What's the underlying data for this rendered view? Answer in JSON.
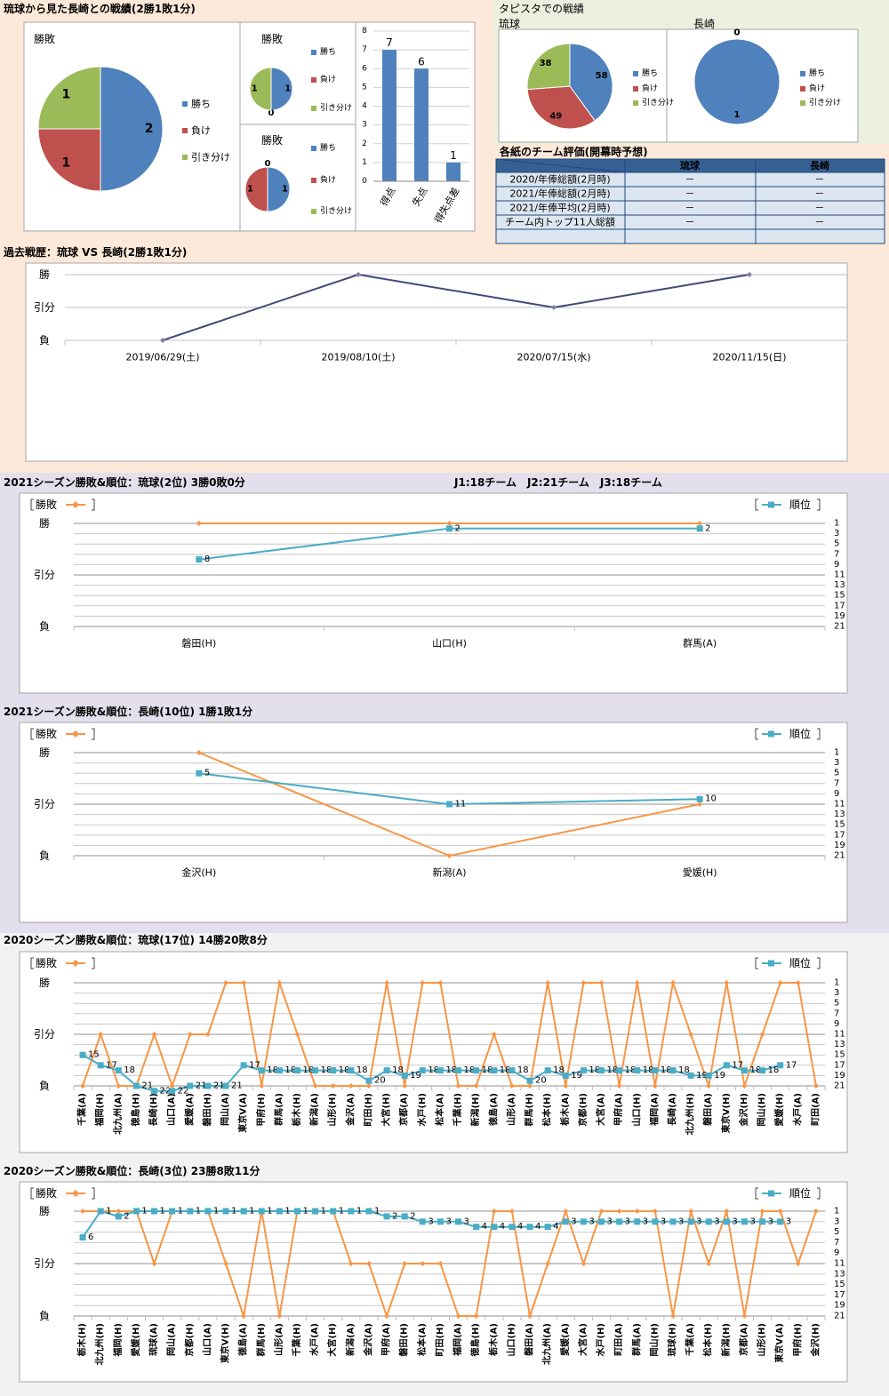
{
  "headings": {
    "record": "琉球から見た長崎との戦績(2勝1敗1分)",
    "stadium": "タピスタでの戦績"
  },
  "chart_data": [
    {
      "type": "pie",
      "title": "勝敗",
      "categories": [
        "勝ち",
        "負け",
        "引き分け"
      ],
      "values": [
        2,
        1,
        1
      ],
      "colors": [
        "#4f81bd",
        "#c0504d",
        "#9bbb59"
      ],
      "legend": "right"
    },
    {
      "type": "pie",
      "title": "勝敗",
      "categories": [
        "勝ち",
        "負け",
        "引き分け"
      ],
      "values": [
        1,
        0,
        1
      ],
      "colors": [
        "#4f81bd",
        "#c0504d",
        "#9bbb59"
      ],
      "legend": "right"
    },
    {
      "type": "pie",
      "title": "勝敗",
      "categories": [
        "勝ち",
        "負け",
        "引き分け"
      ],
      "values": [
        1,
        1,
        0
      ],
      "colors": [
        "#4f81bd",
        "#c0504d",
        "#9bbb59"
      ],
      "legend": "right"
    },
    {
      "type": "bar",
      "categories": [
        "得点",
        "失点",
        "得失点差"
      ],
      "values": [
        7,
        6,
        1
      ],
      "color": "#4f81bd",
      "ylim": [
        0,
        8
      ],
      "yticks": [
        0,
        1,
        2,
        3,
        4,
        5,
        6,
        7,
        8
      ],
      "grid": true
    },
    {
      "type": "pie",
      "title": "琉球",
      "categories": [
        "勝ち",
        "負け",
        "引き分け"
      ],
      "values": [
        58,
        49,
        38
      ],
      "colors": [
        "#4f81bd",
        "#c0504d",
        "#9bbb59"
      ],
      "legend": "right"
    },
    {
      "type": "pie",
      "title": "長崎",
      "categories": [
        "勝ち",
        "負け",
        "引き分け"
      ],
      "values": [
        1,
        0,
        0
      ],
      "colors": [
        "#4f81bd",
        "#c0504d",
        "#9bbb59"
      ],
      "legend": "right"
    },
    {
      "type": "line",
      "title": "過去戦歴：琉球 VS 長崎(2勝1敗1分)",
      "categories": [
        "2019/06/29(土)",
        "2019/08/10(土)",
        "2020/07/15(水)",
        "2020/11/15(日)"
      ],
      "values": [
        0,
        2,
        1,
        2
      ],
      "color": "#3f4a78",
      "marker": "diamond",
      "ylim": [
        0,
        2
      ],
      "yticks": [
        {
          "value": 0,
          "label": "負"
        },
        {
          "value": 1,
          "label": "引分"
        },
        {
          "value": 2,
          "label": "勝"
        }
      ],
      "grid": true
    },
    {
      "type": "line",
      "title": "2021シーズン勝敗&順位：琉球(2位) 3勝0敗0分",
      "annotation": "J1:18チーム　J2:21チーム　J3:18チーム",
      "categories": [
        "磐田(H)",
        "山口(H)",
        "群馬(A)"
      ],
      "series": [
        {
          "name": "勝敗",
          "color": "#f79646",
          "marker": "diamond",
          "values": [
            2,
            2,
            2
          ]
        },
        {
          "name": "順位",
          "color": "#4bacc6",
          "marker": "square",
          "axis": "y2",
          "data_labels": true,
          "values": [
            8,
            2,
            2
          ]
        }
      ],
      "ylim": [
        0,
        2
      ],
      "yticks": [
        {
          "value": 0,
          "label": "負"
        },
        {
          "value": 1,
          "label": "引分"
        },
        {
          "value": 2,
          "label": "勝"
        }
      ],
      "y2lim": [
        21,
        1
      ],
      "y2ticks": [
        1,
        3,
        5,
        7,
        9,
        11,
        13,
        15,
        17,
        19,
        21
      ],
      "grid": true
    },
    {
      "type": "line",
      "title": "2021シーズン勝敗&順位：長崎(10位) 1勝1敗1分",
      "categories": [
        "金沢(H)",
        "新潟(A)",
        "愛媛(H)"
      ],
      "series": [
        {
          "name": "勝敗",
          "color": "#f79646",
          "marker": "diamond",
          "values": [
            2,
            0,
            1
          ]
        },
        {
          "name": "順位",
          "color": "#4bacc6",
          "marker": "square",
          "axis": "y2",
          "data_labels": true,
          "values": [
            5,
            11,
            10
          ]
        }
      ],
      "ylim": [
        0,
        2
      ],
      "yticks": [
        {
          "value": 0,
          "label": "負"
        },
        {
          "value": 1,
          "label": "引分"
        },
        {
          "value": 2,
          "label": "勝"
        }
      ],
      "y2lim": [
        21,
        1
      ],
      "y2ticks": [
        1,
        3,
        5,
        7,
        9,
        11,
        13,
        15,
        17,
        19,
        21
      ],
      "grid": true
    },
    {
      "type": "line",
      "title": "2020シーズン勝敗&順位：琉球(17位) 14勝20敗8分",
      "categories": [
        "千葉(A)",
        "福岡(H)",
        "北九州(A)",
        "徳島(H)",
        "長崎(H)",
        "山口(A)",
        "愛媛(A)",
        "磐田(H)",
        "岡山(A)",
        "東京V(A)",
        "甲府(H)",
        "群馬(A)",
        "栃木(H)",
        "新潟(A)",
        "山形(H)",
        "金沢(A)",
        "町田(H)",
        "大宮(H)",
        "京都(A)",
        "水戸(H)",
        "松本(A)",
        "千葉(H)",
        "新潟(H)",
        "徳島(A)",
        "山形(A)",
        "群馬(H)",
        "松本(H)",
        "栃木(A)",
        "京都(H)",
        "大宮(A)",
        "甲府(A)",
        "山口(H)",
        "福岡(A)",
        "長崎(A)",
        "北九州(H)",
        "磐田(A)",
        "東京V(H)",
        "金沢(H)",
        "岡山(H)",
        "愛媛(H)",
        "水戸(A)",
        "町田(A)"
      ],
      "series": [
        {
          "name": "勝敗",
          "color": "#f79646",
          "marker": "diamond",
          "values": [
            0,
            1,
            0,
            0,
            1,
            0,
            1,
            1,
            2,
            2,
            0,
            2,
            1,
            0,
            0,
            0,
            0,
            2,
            0,
            2,
            2,
            0,
            0,
            1,
            0,
            0,
            2,
            0,
            2,
            2,
            0,
            2,
            0,
            2,
            1,
            0,
            2,
            0,
            1,
            2,
            2,
            0
          ]
        },
        {
          "name": "順位",
          "color": "#4bacc6",
          "marker": "square",
          "axis": "y2",
          "data_labels": true,
          "values": [
            15,
            17,
            18,
            21,
            22,
            22,
            21,
            21,
            21,
            17,
            18,
            18,
            18,
            18,
            18,
            18,
            20,
            18,
            19,
            18,
            18,
            18,
            18,
            18,
            18,
            20,
            18,
            19,
            18,
            18,
            18,
            18,
            18,
            18,
            19,
            19,
            17,
            18,
            18,
            17,
            null,
            null
          ]
        }
      ],
      "ylim": [
        0,
        2
      ],
      "yticks": [
        {
          "value": 0,
          "label": "負"
        },
        {
          "value": 1,
          "label": "引分"
        },
        {
          "value": 2,
          "label": "勝"
        }
      ],
      "y2lim": [
        21,
        1
      ],
      "y2ticks": [
        1,
        3,
        5,
        7,
        9,
        11,
        13,
        15,
        17,
        19,
        21
      ],
      "grid": true
    },
    {
      "type": "line",
      "title": "2020シーズン勝敗&順位：長崎(3位) 23勝8敗11分",
      "categories": [
        "栃木(H)",
        "北九州(H)",
        "福岡(H)",
        "愛媛(H)",
        "琉球(A)",
        "岡山(A)",
        "京都(H)",
        "山口(A)",
        "東京V(H)",
        "徳島(A)",
        "群馬(H)",
        "山形(A)",
        "千葉(H)",
        "水戸(A)",
        "大宮(H)",
        "新潟(A)",
        "金沢(A)",
        "甲府(A)",
        "磐田(H)",
        "松本(A)",
        "町田(H)",
        "福岡(A)",
        "徳島(H)",
        "栃木(A)",
        "山口(H)",
        "磐田(A)",
        "北九州(A)",
        "愛媛(A)",
        "大宮(A)",
        "水戸(H)",
        "町田(A)",
        "群馬(A)",
        "岡山(H)",
        "琉球(H)",
        "千葉(A)",
        "松本(H)",
        "新潟(H)",
        "京都(A)",
        "山形(H)",
        "東京V(A)",
        "甲府(H)",
        "金沢(H)"
      ],
      "series": [
        {
          "name": "勝敗",
          "color": "#f79646",
          "marker": "diamond",
          "values": [
            2,
            2,
            2,
            2,
            1,
            2,
            2,
            2,
            1,
            0,
            2,
            0,
            2,
            2,
            2,
            1,
            1,
            0,
            1,
            1,
            1,
            0,
            0,
            2,
            2,
            0,
            1,
            2,
            1,
            2,
            2,
            2,
            2,
            0,
            2,
            1,
            2,
            0,
            2,
            2,
            1,
            2
          ]
        },
        {
          "name": "順位",
          "color": "#4bacc6",
          "marker": "square",
          "axis": "y2",
          "data_labels": true,
          "values": [
            6,
            1,
            2,
            1,
            1,
            1,
            1,
            1,
            1,
            1,
            1,
            1,
            1,
            1,
            1,
            1,
            1,
            2,
            2,
            3,
            3,
            3,
            4,
            4,
            4,
            4,
            4,
            3,
            3,
            3,
            3,
            3,
            3,
            3,
            3,
            3,
            3,
            3,
            3,
            3,
            null,
            null
          ]
        }
      ],
      "ylim": [
        0,
        2
      ],
      "yticks": [
        {
          "value": 0,
          "label": "負"
        },
        {
          "value": 1,
          "label": "引分"
        },
        {
          "value": 2,
          "label": "勝"
        }
      ],
      "y2lim": [
        21,
        1
      ],
      "y2ticks": [
        1,
        3,
        5,
        7,
        9,
        11,
        13,
        15,
        17,
        19,
        21
      ],
      "grid": true
    }
  ],
  "table": {
    "title": "各紙のチーム評価(開幕時予想)",
    "columns": [
      "琉球",
      "長崎"
    ],
    "rows": [
      [
        "2020/年俸総額(2月時)",
        "－",
        "－"
      ],
      [
        "2021/年俸総額(2月時)",
        "－",
        "－"
      ],
      [
        "2021/年俸平均(2月時)",
        "－",
        "－"
      ],
      [
        "チーム内トップ11人総額",
        "－",
        "－"
      ]
    ]
  }
}
